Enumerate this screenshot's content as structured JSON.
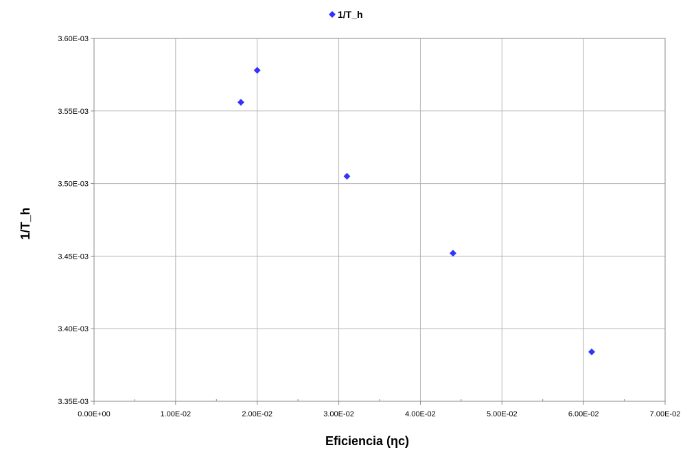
{
  "chart_data": {
    "type": "scatter",
    "title": "",
    "xlabel": "Eficiencia (ηc)",
    "ylabel": "1/T_h",
    "xlim": [
      0,
      0.07
    ],
    "ylim": [
      0.00335,
      0.0036
    ],
    "x_ticks": [
      "0.00E+00",
      "1.00E-02",
      "2.00E-02",
      "3.00E-02",
      "4.00E-02",
      "5.00E-02",
      "6.00E-02",
      "7.00E-02"
    ],
    "x_tick_values": [
      0,
      0.01,
      0.02,
      0.03,
      0.04,
      0.05,
      0.06,
      0.07
    ],
    "y_ticks": [
      "3.35E-03",
      "3.40E-03",
      "3.45E-03",
      "3.50E-03",
      "3.55E-03",
      "3.60E-03"
    ],
    "y_tick_values": [
      0.00335,
      0.0034,
      0.00345,
      0.0035,
      0.00355,
      0.0036
    ],
    "grid": true,
    "legend_position": "top-center",
    "series": [
      {
        "name": "1/T_h",
        "color": "#3333ff",
        "marker": "diamond",
        "x": [
          0.018,
          0.02,
          0.031,
          0.044,
          0.061
        ],
        "y": [
          0.003556,
          0.003578,
          0.003505,
          0.003452,
          0.003384
        ]
      }
    ]
  }
}
